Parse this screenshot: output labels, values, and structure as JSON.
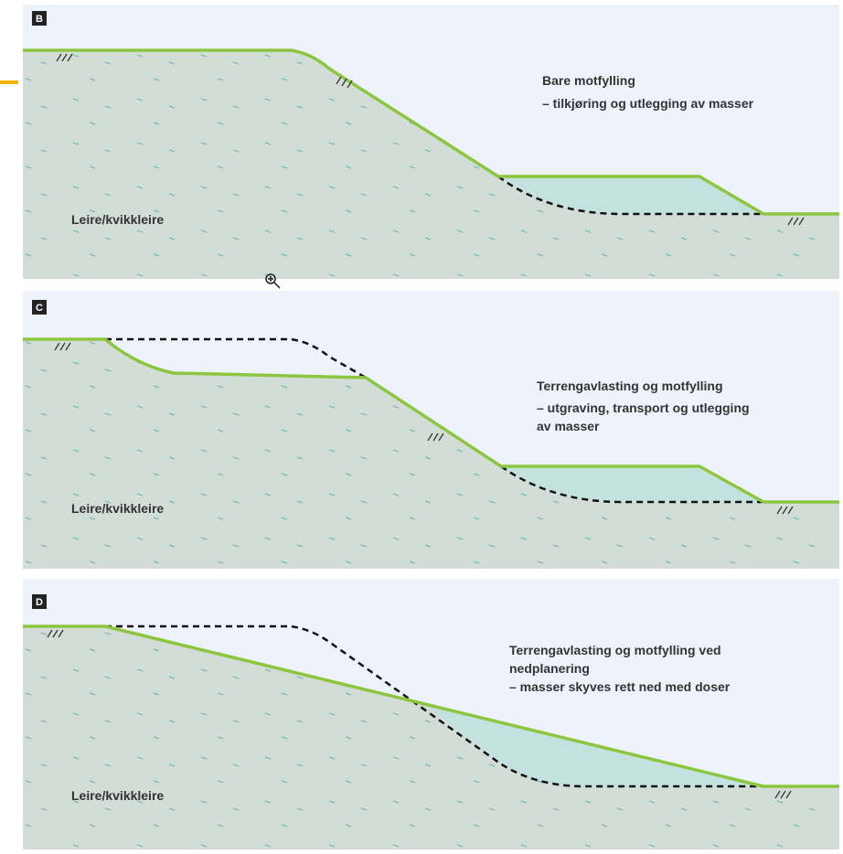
{
  "panels": [
    {
      "label": "B",
      "description": [
        "Bare motfylling",
        "– tilkjøring og utlegging av masser"
      ],
      "soil": "Leire/kvikkleire"
    },
    {
      "label": "C",
      "description": [
        "Terrengavlasting og motfylling",
        "– utgraving, transport og utlegging",
        "av masser"
      ],
      "soil": "Leire/kvikkleire"
    },
    {
      "label": "D",
      "description": [
        "Terrengavlasting og motfylling ved",
        "nedplanering",
        "– masser skyves rett ned med doser"
      ],
      "soil": "Leire/kvikkleire"
    }
  ]
}
